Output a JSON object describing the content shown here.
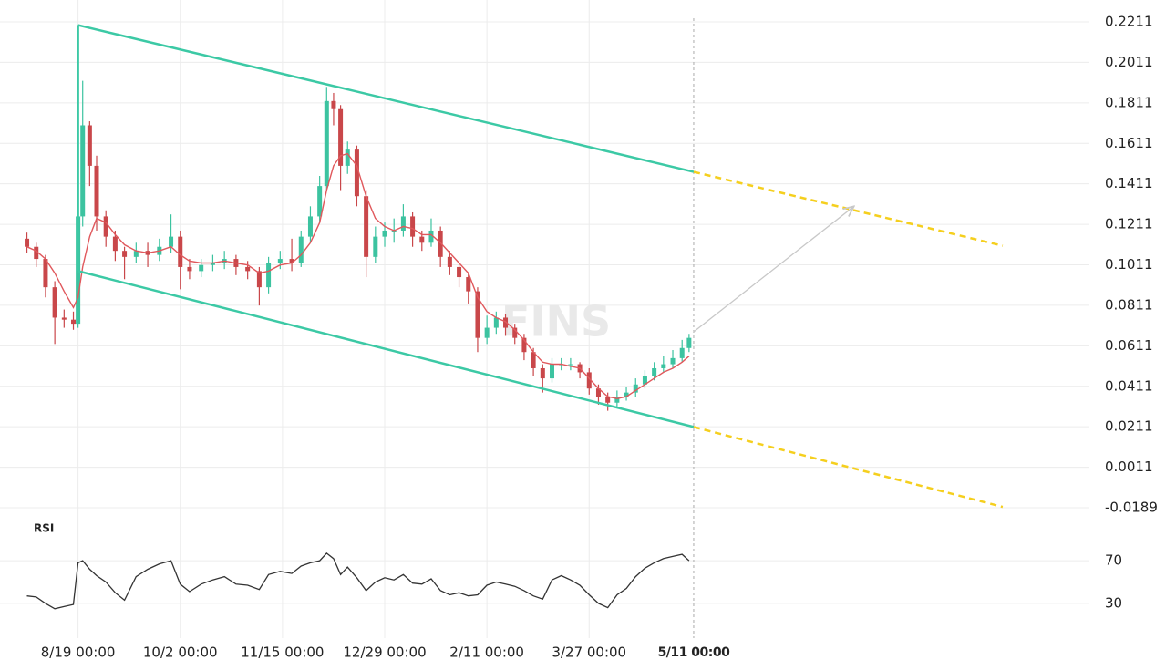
{
  "chart_data": {
    "type": "candlestick",
    "watermark": "FINS",
    "xlim": [
      -23,
      400
    ],
    "ylim": [
      -0.0189,
      0.2211
    ],
    "yticks": [
      0.2211,
      0.2011,
      0.1811,
      0.1611,
      0.1411,
      0.1211,
      0.1011,
      0.0811,
      0.0611,
      0.0411,
      0.0211,
      0.0011,
      -0.0189
    ],
    "xticks": [
      {
        "value": 0,
        "label": "8/19 00:00"
      },
      {
        "value": 44,
        "label": "10/2 00:00"
      },
      {
        "value": 88,
        "label": "11/15 00:00"
      },
      {
        "value": 132,
        "label": "12/29 00:00"
      },
      {
        "value": 176,
        "label": "2/11 00:00"
      },
      {
        "value": 220,
        "label": "3/27 00:00"
      }
    ],
    "crosshair": {
      "x": 265,
      "label": "5/11 00:00"
    },
    "grid": true,
    "up_color": "#3cc3a0",
    "down_color": "#c9474a",
    "ma_color": "#e0585c",
    "x": [
      -22,
      -18,
      -14,
      -10,
      -6,
      -2,
      0,
      2,
      5,
      8,
      12,
      16,
      20,
      25,
      30,
      35,
      40,
      44,
      48,
      53,
      58,
      63,
      68,
      73,
      78,
      82,
      87,
      92,
      96,
      100,
      104,
      107,
      110,
      113,
      116,
      120,
      124,
      128,
      132,
      136,
      140,
      144,
      148,
      152,
      156,
      160,
      164,
      168,
      172,
      176,
      180,
      184,
      188,
      192,
      196,
      200,
      204,
      208,
      212,
      216,
      220,
      224,
      228,
      232,
      236,
      240,
      244,
      248,
      252,
      256,
      260,
      263
    ],
    "open": [
      0.114,
      0.11,
      0.104,
      0.09,
      0.075,
      0.074,
      0.072,
      0.125,
      0.17,
      0.15,
      0.125,
      0.115,
      0.108,
      0.105,
      0.108,
      0.106,
      0.11,
      0.115,
      0.1,
      0.098,
      0.101,
      0.102,
      0.104,
      0.1,
      0.098,
      0.09,
      0.102,
      0.104,
      0.102,
      0.115,
      0.125,
      0.14,
      0.182,
      0.178,
      0.15,
      0.158,
      0.135,
      0.105,
      0.115,
      0.118,
      0.118,
      0.125,
      0.115,
      0.112,
      0.118,
      0.105,
      0.1,
      0.095,
      0.088,
      0.065,
      0.07,
      0.075,
      0.07,
      0.065,
      0.058,
      0.05,
      0.045,
      0.052,
      0.052,
      0.052,
      0.048,
      0.04,
      0.036,
      0.033,
      0.036,
      0.038,
      0.042,
      0.046,
      0.05,
      0.052,
      0.055,
      0.06
    ],
    "high": [
      0.117,
      0.112,
      0.106,
      0.093,
      0.079,
      0.078,
      0.2195,
      0.192,
      0.172,
      0.155,
      0.128,
      0.118,
      0.11,
      0.112,
      0.112,
      0.114,
      0.126,
      0.118,
      0.104,
      0.104,
      0.106,
      0.108,
      0.106,
      0.103,
      0.1,
      0.105,
      0.108,
      0.114,
      0.118,
      0.13,
      0.145,
      0.189,
      0.186,
      0.18,
      0.162,
      0.16,
      0.138,
      0.12,
      0.122,
      0.124,
      0.131,
      0.127,
      0.118,
      0.124,
      0.12,
      0.108,
      0.102,
      0.097,
      0.09,
      0.076,
      0.078,
      0.077,
      0.072,
      0.067,
      0.06,
      0.052,
      0.055,
      0.055,
      0.055,
      0.053,
      0.05,
      0.042,
      0.038,
      0.039,
      0.041,
      0.045,
      0.049,
      0.053,
      0.056,
      0.059,
      0.064,
      0.067
    ],
    "low": [
      0.107,
      0.1,
      0.085,
      0.062,
      0.07,
      0.069,
      0.07,
      0.12,
      0.14,
      0.118,
      0.11,
      0.103,
      0.094,
      0.102,
      0.1,
      0.103,
      0.107,
      0.089,
      0.094,
      0.095,
      0.098,
      0.099,
      0.096,
      0.094,
      0.081,
      0.087,
      0.099,
      0.098,
      0.1,
      0.112,
      0.122,
      0.138,
      0.17,
      0.138,
      0.146,
      0.13,
      0.095,
      0.102,
      0.11,
      0.112,
      0.115,
      0.11,
      0.108,
      0.11,
      0.1,
      0.096,
      0.09,
      0.082,
      0.058,
      0.062,
      0.067,
      0.066,
      0.062,
      0.054,
      0.046,
      0.038,
      0.043,
      0.049,
      0.049,
      0.045,
      0.037,
      0.032,
      0.029,
      0.031,
      0.034,
      0.036,
      0.04,
      0.044,
      0.048,
      0.05,
      0.053,
      0.058
    ],
    "close": [
      0.11,
      0.104,
      0.09,
      0.075,
      0.074,
      0.072,
      0.125,
      0.17,
      0.15,
      0.125,
      0.115,
      0.108,
      0.105,
      0.108,
      0.106,
      0.11,
      0.115,
      0.1,
      0.098,
      0.101,
      0.102,
      0.104,
      0.1,
      0.098,
      0.09,
      0.102,
      0.104,
      0.102,
      0.115,
      0.125,
      0.14,
      0.182,
      0.178,
      0.15,
      0.158,
      0.135,
      0.105,
      0.115,
      0.118,
      0.118,
      0.125,
      0.115,
      0.112,
      0.118,
      0.105,
      0.1,
      0.095,
      0.088,
      0.065,
      0.07,
      0.075,
      0.07,
      0.065,
      0.058,
      0.05,
      0.045,
      0.052,
      0.052,
      0.052,
      0.048,
      0.04,
      0.036,
      0.033,
      0.036,
      0.038,
      0.042,
      0.046,
      0.05,
      0.052,
      0.055,
      0.06,
      0.065
    ],
    "ma": [
      0.11,
      0.108,
      0.104,
      0.097,
      0.088,
      0.08,
      0.085,
      0.1,
      0.115,
      0.124,
      0.122,
      0.116,
      0.111,
      0.108,
      0.107,
      0.108,
      0.11,
      0.106,
      0.103,
      0.102,
      0.102,
      0.103,
      0.102,
      0.101,
      0.097,
      0.098,
      0.101,
      0.102,
      0.106,
      0.112,
      0.122,
      0.138,
      0.15,
      0.155,
      0.156,
      0.15,
      0.135,
      0.124,
      0.12,
      0.118,
      0.12,
      0.119,
      0.116,
      0.116,
      0.112,
      0.107,
      0.102,
      0.097,
      0.085,
      0.078,
      0.075,
      0.073,
      0.069,
      0.064,
      0.058,
      0.053,
      0.052,
      0.052,
      0.051,
      0.05,
      0.045,
      0.04,
      0.036,
      0.035,
      0.036,
      0.039,
      0.042,
      0.045,
      0.048,
      0.05,
      0.053,
      0.056
    ],
    "trendlines": [
      {
        "color": "#3cc9a5",
        "dashed": false,
        "x": [
          0,
          265
        ],
        "y": [
          0.2195,
          0.147
        ]
      },
      {
        "color": "#3cc9a5",
        "dashed": false,
        "x": [
          0,
          265
        ],
        "y": [
          0.098,
          0.021
        ]
      },
      {
        "color": "#3cc9a5",
        "dashed": false,
        "x": [
          0,
          0
        ],
        "y": [
          0.098,
          0.2195
        ]
      },
      {
        "color": "#f5cf1e",
        "dashed": true,
        "x": [
          265,
          398
        ],
        "y": [
          0.147,
          0.1105
        ]
      },
      {
        "color": "#f5cf1e",
        "dashed": true,
        "x": [
          265,
          398
        ],
        "y": [
          0.021,
          -0.0185
        ]
      },
      {
        "color": "#c8c8c8",
        "dashed": false,
        "arrow": true,
        "x": [
          265,
          334
        ],
        "y": [
          0.068,
          0.13
        ]
      }
    ],
    "rsi": {
      "label": "RSI",
      "color": "#333",
      "ylim": [
        0,
        100
      ],
      "yticks": [
        70,
        30
      ],
      "values": [
        37,
        36,
        30,
        25,
        27,
        29,
        68,
        70,
        62,
        56,
        50,
        40,
        33,
        55,
        62,
        67,
        70,
        48,
        41,
        48,
        52,
        55,
        48,
        47,
        43,
        57,
        60,
        58,
        65,
        68,
        70,
        77,
        72,
        57,
        64,
        54,
        42,
        50,
        54,
        52,
        57,
        49,
        48,
        53,
        42,
        38,
        40,
        37,
        38,
        47,
        50,
        48,
        46,
        42,
        37,
        34,
        52,
        56,
        52,
        47,
        38,
        30,
        26,
        38,
        44,
        55,
        63,
        68,
        72,
        74,
        76,
        70
      ]
    }
  }
}
